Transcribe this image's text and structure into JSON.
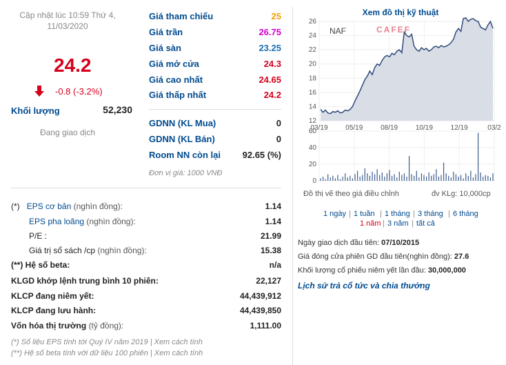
{
  "header": {
    "updated_line1": "Cập nhật lúc 10:59 Thứ 4,",
    "updated_line2": "11/03/2020",
    "price": "24.2",
    "change": "-0.8 (-3.2%)",
    "volume_label": "Khối lượng",
    "volume_value": "52,230",
    "trading_status": "Đang giao dịch"
  },
  "prices": {
    "ref_label": "Giá tham chiếu",
    "ref_value": "25",
    "ceil_label": "Giá trần",
    "ceil_value": "26.75",
    "floor_label": "Giá sàn",
    "floor_value": "23.25",
    "open_label": "Giá mở cửa",
    "open_value": "24.3",
    "high_label": "Giá cao nhất",
    "high_value": "24.65",
    "low_label": "Giá thấp nhất",
    "low_value": "24.2",
    "gdnn_buy_label": "GDNN (KL Mua)",
    "gdnn_buy_value": "0",
    "gdnn_sell_label": "GDNN (KL Bán)",
    "gdnn_sell_value": "0",
    "room_label": "Room NN còn lại",
    "room_value": "92.65 (%)",
    "unit": "Đơn vị giá: 1000 VNĐ",
    "colors": {
      "ref": "#f0a000",
      "ceil": "#d000d0",
      "floor": "#1a6fb3",
      "open": "#d6001c",
      "high": "#d6001c",
      "low": "#d6001c"
    }
  },
  "stats": {
    "eps_basic_mark": "(*)",
    "eps_basic_label": "EPS cơ bản",
    "eps_basic_note": "(nghìn đồng):",
    "eps_basic_value": "1.14",
    "eps_diluted_label": "EPS pha loãng",
    "eps_diluted_note": "(nghìn đồng):",
    "eps_diluted_value": "1.14",
    "pe_label": "P/E :",
    "pe_value": "21.99",
    "bv_label": "Giá trị sổ sách /cp",
    "bv_note": "(nghìn đồng):",
    "bv_value": "15.38",
    "beta_label": "(**) Hệ số beta:",
    "beta_value": "n/a",
    "avg_vol_label": "KLGD khớp lệnh trung bình 10 phiên:",
    "avg_vol_value": "22,127",
    "listed_label": "KLCP đang niêm yết:",
    "listed_value": "44,439,912",
    "outstanding_label": "KLCP đang lưu hành:",
    "outstanding_value": "44,439,850",
    "mcap_label": "Vốn hóa thị trường",
    "mcap_note": "(tỷ đồng):",
    "mcap_value": "1,111.00",
    "foot1": "(*) Số liệu EPS tính tới Quý IV năm 2019 | Xem cách tính",
    "foot2": "(**) Hệ số beta tính với dữ liệu 100 phiên | Xem cách tính"
  },
  "chart_panel": {
    "title": "Xem đồ thị kỹ thuật",
    "ticker": "NAF",
    "logo": "CAFEF",
    "note_left": "Đồ thị vẽ theo giá điều chỉnh",
    "note_right": "đv KLg: 10,000cp",
    "ranges": [
      "1 ngày",
      "1 tuần",
      "1 tháng",
      "3 tháng",
      "6 tháng",
      "1 năm",
      "3 năm",
      "tất cả"
    ],
    "active_range": "1 năm",
    "first_trade_label": "Ngày giao dịch đầu tiên:",
    "first_trade_value": "07/10/2015",
    "first_close_label": "Giá đóng cửa phiên GD đầu tiên(nghìn đồng):",
    "first_close_value": "27.6",
    "first_listed_label": "Khối lượng cổ phiếu niêm yết lần đầu:",
    "first_listed_value": "30,000,000",
    "dividend_link": "Lịch sử trả cổ tức và chia thưởng"
  },
  "chart_data": {
    "type": "area",
    "x_ticks": [
      "03/19",
      "05/19",
      "08/19",
      "10/19",
      "12/19",
      "03/2"
    ],
    "price_ylim": [
      12,
      26
    ],
    "price_yticks": [
      12,
      14,
      16,
      18,
      20,
      22,
      24,
      26
    ],
    "price_series": [
      13.6,
      13.2,
      13.5,
      13.1,
      13.0,
      13.3,
      13.2,
      13.4,
      13.1,
      13.2,
      13.5,
      13.4,
      13.6,
      14.0,
      14.8,
      15.5,
      16.2,
      17.0,
      17.8,
      18.3,
      19.0,
      18.5,
      19.5,
      20.0,
      19.8,
      20.5,
      21.0,
      21.2,
      21.0,
      21.5,
      21.3,
      21.8,
      22.0,
      21.6,
      24.5,
      24.0,
      23.8,
      24.2,
      22.5,
      22.0,
      21.8,
      22.3,
      22.0,
      22.2,
      21.8,
      22.0,
      22.4,
      22.5,
      22.3,
      22.6,
      22.4,
      22.5,
      22.7,
      23.0,
      23.5,
      24.5,
      25.0,
      24.6,
      26.4,
      26.5,
      26.0,
      26.3,
      26.4,
      26.1,
      26.0,
      25.2,
      25.0,
      24.8,
      25.5,
      26.0,
      25.0
    ],
    "volume_ylim": [
      0,
      60
    ],
    "volume_yticks": [
      0,
      20,
      40,
      60
    ],
    "volume_series": [
      3,
      5,
      2,
      8,
      4,
      6,
      3,
      7,
      2,
      5,
      9,
      4,
      6,
      3,
      8,
      12,
      5,
      7,
      15,
      9,
      6,
      11,
      8,
      14,
      7,
      10,
      5,
      9,
      13,
      6,
      8,
      4,
      11,
      7,
      9,
      5,
      30,
      8,
      6,
      12,
      4,
      9,
      7,
      5,
      10,
      6,
      8,
      14,
      5,
      7,
      22,
      9,
      6,
      4,
      11,
      8,
      5,
      7,
      3,
      9,
      6,
      12,
      4,
      8,
      58,
      10,
      5,
      7,
      6,
      4,
      9
    ]
  }
}
